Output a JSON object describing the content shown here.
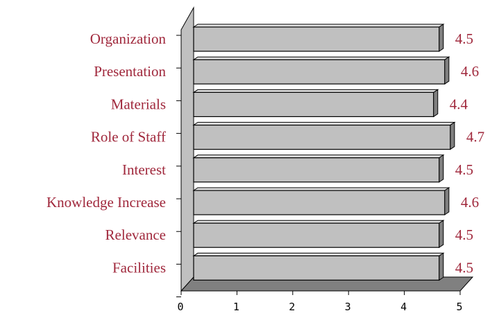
{
  "chart_data": {
    "type": "bar",
    "orientation": "horizontal",
    "style": "3d",
    "title": "",
    "xlabel": "",
    "ylabel": "",
    "categories": [
      "Organization",
      "Presentation",
      "Materials",
      "Role of Staff",
      "Interest",
      "Knowledge Increase",
      "Relevance",
      "Facilities"
    ],
    "values": [
      4.5,
      4.6,
      4.4,
      4.7,
      4.5,
      4.6,
      4.5,
      4.5
    ],
    "value_labels": [
      "4.5",
      "4.6",
      "4.4",
      "4.7",
      "4.5",
      "4.6",
      "4.5",
      "4.5"
    ],
    "xlim": [
      0,
      5
    ],
    "xticks": [
      "0",
      "1",
      "2",
      "3",
      "4",
      "5"
    ],
    "grid": false,
    "legend": "none",
    "colors": {
      "bar_front": "#c0c0c0",
      "bar_top": "#e0e0e0",
      "bar_side": "#808080",
      "outline": "#000000",
      "label_text": "#a0283c",
      "wall": "#c0c0c0",
      "floor": "#808080"
    }
  }
}
